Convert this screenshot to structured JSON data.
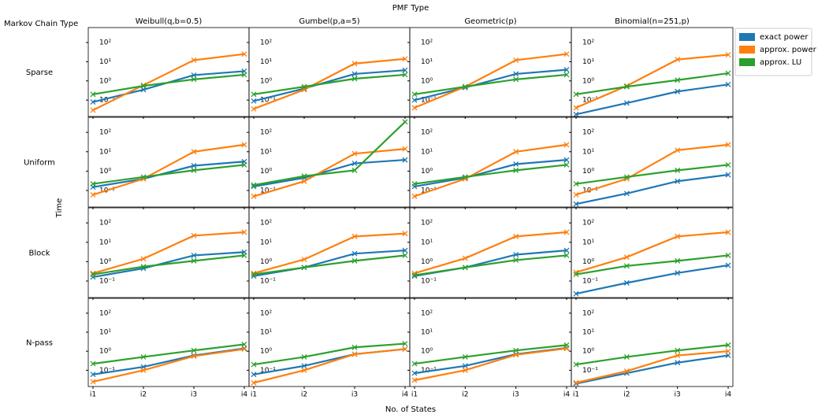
{
  "title": "PMF Type",
  "row_header": "Markov Chain Type",
  "xlabel": "No. of States",
  "ylabel": "Time",
  "columns": [
    "Weibull(q,b=0.5)",
    "Gumbel(p,a=5)",
    "Geometric(p)",
    "Binomial(n=251,p)"
  ],
  "rows": [
    "Sparse",
    "Uniform",
    "Block",
    "N-pass"
  ],
  "x_categories": [
    "i1",
    "i2",
    "i3",
    "i4"
  ],
  "chart_data": [
    {
      "type": "line",
      "log_y": true,
      "ylim": [
        0.014,
        600
      ],
      "yticks": [
        {
          "value": 0.1,
          "label": "10⁻¹"
        },
        {
          "value": 1,
          "label": "10⁰"
        },
        {
          "value": 10,
          "label": "10¹"
        },
        {
          "value": 100,
          "label": "10²"
        }
      ],
      "series": [
        {
          "name": "exact power",
          "color": "#1f77b4",
          "values": [
            0.08,
            0.35,
            2,
            3.2
          ]
        },
        {
          "name": "approx. power",
          "color": "#ff7f0e",
          "values": [
            0.03,
            0.6,
            12,
            25
          ]
        },
        {
          "name": "approx. LU",
          "color": "#2ca02c",
          "values": [
            0.2,
            0.55,
            1.2,
            2.1
          ]
        }
      ]
    },
    {
      "type": "line",
      "log_y": true,
      "ylim": [
        0.014,
        600
      ],
      "yticks": [
        {
          "value": 0.1,
          "label": "10⁻¹"
        },
        {
          "value": 1,
          "label": "10⁰"
        },
        {
          "value": 10,
          "label": "10¹"
        },
        {
          "value": 100,
          "label": "10²"
        }
      ],
      "series": [
        {
          "name": "exact power",
          "color": "#1f77b4",
          "values": [
            0.09,
            0.4,
            2.3,
            3.6
          ]
        },
        {
          "name": "approx. power",
          "color": "#ff7f0e",
          "values": [
            0.035,
            0.35,
            8,
            14
          ]
        },
        {
          "name": "approx. LU",
          "color": "#2ca02c",
          "values": [
            0.2,
            0.5,
            1.3,
            2.1
          ]
        }
      ]
    },
    {
      "type": "line",
      "log_y": true,
      "ylim": [
        0.014,
        600
      ],
      "yticks": [
        {
          "value": 0.1,
          "label": "10⁻¹"
        },
        {
          "value": 1,
          "label": "10⁰"
        },
        {
          "value": 10,
          "label": "10¹"
        },
        {
          "value": 100,
          "label": "10²"
        }
      ],
      "series": [
        {
          "name": "exact power",
          "color": "#1f77b4",
          "values": [
            0.1,
            0.45,
            2.3,
            3.8
          ]
        },
        {
          "name": "approx. power",
          "color": "#ff7f0e",
          "values": [
            0.04,
            0.5,
            12,
            25
          ]
        },
        {
          "name": "approx. LU",
          "color": "#2ca02c",
          "values": [
            0.2,
            0.5,
            1.2,
            2.1
          ]
        }
      ]
    },
    {
      "type": "line",
      "log_y": true,
      "ylim": [
        0.014,
        600
      ],
      "yticks": [
        {
          "value": 0.1,
          "label": "10⁻¹"
        },
        {
          "value": 1,
          "label": "10⁰"
        },
        {
          "value": 10,
          "label": "10¹"
        },
        {
          "value": 100,
          "label": "10²"
        }
      ],
      "series": [
        {
          "name": "exact power",
          "color": "#1f77b4",
          "values": [
            0.018,
            0.07,
            0.28,
            0.65
          ]
        },
        {
          "name": "approx. power",
          "color": "#ff7f0e",
          "values": [
            0.04,
            0.55,
            13,
            23
          ]
        },
        {
          "name": "approx. LU",
          "color": "#2ca02c",
          "values": [
            0.2,
            0.5,
            1.1,
            2.5
          ]
        }
      ]
    },
    {
      "type": "line",
      "log_y": true,
      "ylim": [
        0.014,
        600
      ],
      "yticks": [
        {
          "value": 0.1,
          "label": "10⁻¹"
        },
        {
          "value": 1,
          "label": "10⁰"
        },
        {
          "value": 10,
          "label": "10¹"
        },
        {
          "value": 100,
          "label": "10²"
        }
      ],
      "series": [
        {
          "name": "exact power",
          "color": "#1f77b4",
          "values": [
            0.15,
            0.4,
            1.9,
            3.1
          ]
        },
        {
          "name": "approx. power",
          "color": "#ff7f0e",
          "values": [
            0.06,
            0.4,
            10,
            23
          ]
        },
        {
          "name": "approx. LU",
          "color": "#2ca02c",
          "values": [
            0.22,
            0.5,
            1.1,
            2.1
          ]
        }
      ]
    },
    {
      "type": "line",
      "log_y": true,
      "ylim": [
        0.014,
        600
      ],
      "yticks": [
        {
          "value": 0.1,
          "label": "10⁻¹"
        },
        {
          "value": 1,
          "label": "10⁰"
        },
        {
          "value": 10,
          "label": "10¹"
        },
        {
          "value": 100,
          "label": "10²"
        }
      ],
      "series": [
        {
          "name": "exact power",
          "color": "#1f77b4",
          "values": [
            0.16,
            0.45,
            2.5,
            3.8
          ]
        },
        {
          "name": "approx. power",
          "color": "#ff7f0e",
          "values": [
            0.05,
            0.3,
            8,
            14
          ]
        },
        {
          "name": "approx. LU",
          "color": "#2ca02c",
          "values": [
            0.19,
            0.55,
            1.1,
            350
          ]
        }
      ]
    },
    {
      "type": "line",
      "log_y": true,
      "ylim": [
        0.014,
        600
      ],
      "yticks": [
        {
          "value": 0.1,
          "label": "10⁻¹"
        },
        {
          "value": 1,
          "label": "10⁰"
        },
        {
          "value": 10,
          "label": "10¹"
        },
        {
          "value": 100,
          "label": "10²"
        }
      ],
      "series": [
        {
          "name": "exact power",
          "color": "#1f77b4",
          "values": [
            0.16,
            0.45,
            2.3,
            3.8
          ]
        },
        {
          "name": "approx. power",
          "color": "#ff7f0e",
          "values": [
            0.05,
            0.4,
            10,
            23
          ]
        },
        {
          "name": "approx. LU",
          "color": "#2ca02c",
          "values": [
            0.22,
            0.5,
            1.1,
            2.1
          ]
        }
      ]
    },
    {
      "type": "line",
      "log_y": true,
      "ylim": [
        0.014,
        600
      ],
      "yticks": [
        {
          "value": 0.1,
          "label": "10⁻¹"
        },
        {
          "value": 1,
          "label": "10⁰"
        },
        {
          "value": 10,
          "label": "10¹"
        },
        {
          "value": 100,
          "label": "10²"
        }
      ],
      "series": [
        {
          "name": "exact power",
          "color": "#1f77b4",
          "values": [
            0.02,
            0.07,
            0.3,
            0.65
          ]
        },
        {
          "name": "approx. power",
          "color": "#ff7f0e",
          "values": [
            0.06,
            0.4,
            12,
            23
          ]
        },
        {
          "name": "approx. LU",
          "color": "#2ca02c",
          "values": [
            0.22,
            0.5,
            1.1,
            2.1
          ]
        }
      ]
    },
    {
      "type": "line",
      "log_y": true,
      "ylim": [
        0.014,
        600
      ],
      "yticks": [
        {
          "value": 0.1,
          "label": "10⁻¹"
        },
        {
          "value": 1,
          "label": "10⁰"
        },
        {
          "value": 10,
          "label": "10¹"
        },
        {
          "value": 100,
          "label": "10²"
        }
      ],
      "series": [
        {
          "name": "exact power",
          "color": "#1f77b4",
          "values": [
            0.16,
            0.45,
            2.1,
            3.1
          ]
        },
        {
          "name": "approx. power",
          "color": "#ff7f0e",
          "values": [
            0.25,
            1.4,
            22,
            33
          ]
        },
        {
          "name": "approx. LU",
          "color": "#2ca02c",
          "values": [
            0.22,
            0.55,
            1.1,
            2.1
          ]
        }
      ]
    },
    {
      "type": "line",
      "log_y": true,
      "ylim": [
        0.014,
        600
      ],
      "yticks": [
        {
          "value": 0.1,
          "label": "10⁻¹"
        },
        {
          "value": 1,
          "label": "10⁰"
        },
        {
          "value": 10,
          "label": "10¹"
        },
        {
          "value": 100,
          "label": "10²"
        }
      ],
      "series": [
        {
          "name": "exact power",
          "color": "#1f77b4",
          "values": [
            0.18,
            0.5,
            2.6,
            3.8
          ]
        },
        {
          "name": "approx. power",
          "color": "#ff7f0e",
          "values": [
            0.25,
            1.3,
            20,
            28
          ]
        },
        {
          "name": "approx. LU",
          "color": "#2ca02c",
          "values": [
            0.22,
            0.5,
            1.1,
            2.1
          ]
        }
      ]
    },
    {
      "type": "line",
      "log_y": true,
      "ylim": [
        0.014,
        600
      ],
      "yticks": [
        {
          "value": 0.1,
          "label": "10⁻¹"
        },
        {
          "value": 1,
          "label": "10⁰"
        },
        {
          "value": 10,
          "label": "10¹"
        },
        {
          "value": 100,
          "label": "10²"
        }
      ],
      "series": [
        {
          "name": "exact power",
          "color": "#1f77b4",
          "values": [
            0.18,
            0.5,
            2.3,
            3.8
          ]
        },
        {
          "name": "approx. power",
          "color": "#ff7f0e",
          "values": [
            0.25,
            1.5,
            20,
            33
          ]
        },
        {
          "name": "approx. LU",
          "color": "#2ca02c",
          "values": [
            0.2,
            0.5,
            1.2,
            2.1
          ]
        }
      ]
    },
    {
      "type": "line",
      "log_y": true,
      "ylim": [
        0.014,
        600
      ],
      "yticks": [
        {
          "value": 0.1,
          "label": "10⁻¹"
        },
        {
          "value": 1,
          "label": "10⁰"
        },
        {
          "value": 10,
          "label": "10¹"
        },
        {
          "value": 100,
          "label": "10²"
        }
      ],
      "series": [
        {
          "name": "exact power",
          "color": "#1f77b4",
          "values": [
            0.022,
            0.08,
            0.26,
            0.65
          ]
        },
        {
          "name": "approx. power",
          "color": "#ff7f0e",
          "values": [
            0.28,
            1.7,
            20,
            33
          ]
        },
        {
          "name": "approx. LU",
          "color": "#2ca02c",
          "values": [
            0.22,
            0.6,
            1.1,
            2.1
          ]
        }
      ]
    },
    {
      "type": "line",
      "log_y": true,
      "ylim": [
        0.014,
        600
      ],
      "yticks": [
        {
          "value": 0.1,
          "label": "10⁻¹"
        },
        {
          "value": 1,
          "label": "10⁰"
        },
        {
          "value": 10,
          "label": "10¹"
        },
        {
          "value": 100,
          "label": "10²"
        }
      ],
      "series": [
        {
          "name": "exact power",
          "color": "#1f77b4",
          "values": [
            0.06,
            0.15,
            0.6,
            1.4
          ]
        },
        {
          "name": "approx. power",
          "color": "#ff7f0e",
          "values": [
            0.025,
            0.1,
            0.55,
            1.3
          ]
        },
        {
          "name": "approx. LU",
          "color": "#2ca02c",
          "values": [
            0.22,
            0.5,
            1.1,
            2.3
          ]
        }
      ]
    },
    {
      "type": "line",
      "log_y": true,
      "ylim": [
        0.014,
        600
      ],
      "yticks": [
        {
          "value": 0.1,
          "label": "10⁻¹"
        },
        {
          "value": 1,
          "label": "10⁰"
        },
        {
          "value": 10,
          "label": "10¹"
        },
        {
          "value": 100,
          "label": "10²"
        }
      ],
      "series": [
        {
          "name": "exact power",
          "color": "#1f77b4",
          "values": [
            0.06,
            0.17,
            0.7,
            1.3
          ]
        },
        {
          "name": "approx. power",
          "color": "#ff7f0e",
          "values": [
            0.022,
            0.1,
            0.7,
            1.3
          ]
        },
        {
          "name": "approx. LU",
          "color": "#2ca02c",
          "values": [
            0.2,
            0.5,
            1.6,
            2.5
          ]
        }
      ]
    },
    {
      "type": "line",
      "log_y": true,
      "ylim": [
        0.014,
        600
      ],
      "yticks": [
        {
          "value": 0.1,
          "label": "10⁻¹"
        },
        {
          "value": 1,
          "label": "10⁰"
        },
        {
          "value": 10,
          "label": "10¹"
        },
        {
          "value": 100,
          "label": "10²"
        }
      ],
      "series": [
        {
          "name": "exact power",
          "color": "#1f77b4",
          "values": [
            0.07,
            0.17,
            0.7,
            1.5
          ]
        },
        {
          "name": "approx. power",
          "color": "#ff7f0e",
          "values": [
            0.03,
            0.1,
            0.65,
            1.4
          ]
        },
        {
          "name": "approx. LU",
          "color": "#2ca02c",
          "values": [
            0.22,
            0.5,
            1.1,
            2.1
          ]
        }
      ]
    },
    {
      "type": "line",
      "log_y": true,
      "ylim": [
        0.014,
        600
      ],
      "yticks": [
        {
          "value": 0.1,
          "label": "10⁻¹"
        },
        {
          "value": 1,
          "label": "10⁰"
        },
        {
          "value": 10,
          "label": "10¹"
        },
        {
          "value": 100,
          "label": "10²"
        }
      ],
      "series": [
        {
          "name": "exact power",
          "color": "#1f77b4",
          "values": [
            0.02,
            0.07,
            0.25,
            0.6
          ]
        },
        {
          "name": "approx. power",
          "color": "#ff7f0e",
          "values": [
            0.022,
            0.09,
            0.6,
            1.0
          ]
        },
        {
          "name": "approx. LU",
          "color": "#2ca02c",
          "values": [
            0.2,
            0.5,
            1.1,
            2.1
          ]
        }
      ]
    }
  ]
}
